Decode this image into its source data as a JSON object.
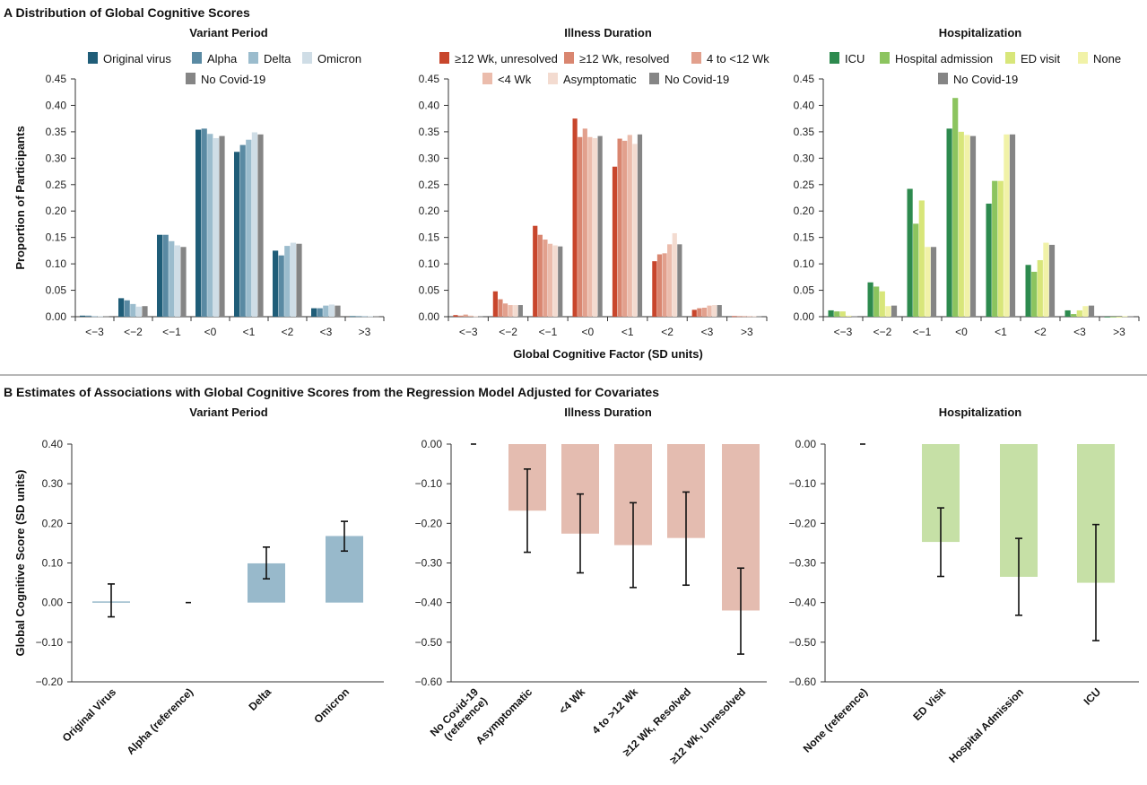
{
  "panel_a_title": "A  Distribution of Global Cognitive Scores",
  "panel_b_title": "B  Estimates of Associations with Global Cognitive Scores from the Regression Model Adjusted for Covariates",
  "panel_a_xlabel": "Global Cognitive Factor (SD units)",
  "colors": {
    "original": "#1f5d78",
    "alpha": "#5a8aa3",
    "delta": "#9bbccd",
    "omicron": "#cfdde6",
    "nocovid": "#858585",
    "d1": "#c8462c",
    "d2": "#d98670",
    "d3": "#e2a08d",
    "d4": "#ebbcac",
    "d5": "#f3dbd0",
    "h1": "#2d8a4e",
    "h2": "#8cc45f",
    "h3": "#d8e67a",
    "h4": "#f1f2a8",
    "b_variant": "#98b9cb",
    "b_duration": "#e4bcb0",
    "b_hosp": "#c6e0a6"
  },
  "chart_data": [
    {
      "type": "bar",
      "title": "Variant Period",
      "ylabel": "Proportion of Participants",
      "xlabel": "",
      "ylim": [
        0,
        0.45
      ],
      "yticks": [
        "0.00",
        "0.05",
        "0.10",
        "0.15",
        "0.20",
        "0.25",
        "0.30",
        "0.35",
        "0.40",
        "0.45"
      ],
      "categories": [
        "<−3",
        "<−2",
        "<−1",
        "<0",
        "<1",
        "<2",
        "<3",
        ">3"
      ],
      "legend": "top",
      "series": [
        {
          "name": "Original virus",
          "color": "original",
          "values": [
            0.002,
            0.035,
            0.155,
            0.354,
            0.312,
            0.125,
            0.016,
            0.001
          ]
        },
        {
          "name": "Alpha",
          "color": "alpha",
          "values": [
            0.002,
            0.031,
            0.155,
            0.356,
            0.325,
            0.116,
            0.016,
            0.001
          ]
        },
        {
          "name": "Delta",
          "color": "delta",
          "values": [
            0.001,
            0.024,
            0.143,
            0.346,
            0.335,
            0.134,
            0.021,
            0.001
          ]
        },
        {
          "name": "Omicron",
          "color": "omicron",
          "values": [
            0.001,
            0.019,
            0.135,
            0.338,
            0.349,
            0.14,
            0.023,
            0.001
          ]
        },
        {
          "name": "No Covid-19",
          "color": "nocovid",
          "values": [
            0.001,
            0.02,
            0.132,
            0.342,
            0.345,
            0.138,
            0.021,
            0.001
          ]
        }
      ]
    },
    {
      "type": "bar",
      "title": "Illness Duration",
      "ylabel": "",
      "xlabel": "",
      "ylim": [
        0,
        0.45
      ],
      "yticks": [
        "0.00",
        "0.05",
        "0.10",
        "0.15",
        "0.20",
        "0.25",
        "0.30",
        "0.35",
        "0.40",
        "0.45"
      ],
      "categories": [
        "<−3",
        "<−2",
        "<−1",
        "<0",
        "<1",
        "<2",
        "<3",
        ">3"
      ],
      "legend": "top",
      "series": [
        {
          "name": "≥12 Wk, unresolved",
          "color": "d1",
          "values": [
            0.003,
            0.048,
            0.172,
            0.375,
            0.284,
            0.105,
            0.013,
            0.001
          ]
        },
        {
          "name": "≥12 Wk, resolved",
          "color": "d2",
          "values": [
            0.002,
            0.033,
            0.155,
            0.34,
            0.337,
            0.118,
            0.016,
            0.001
          ]
        },
        {
          "name": "4 to <12 Wk",
          "color": "d3",
          "values": [
            0.004,
            0.025,
            0.146,
            0.356,
            0.333,
            0.12,
            0.017,
            0.001
          ]
        },
        {
          "name": "<4 Wk",
          "color": "d4",
          "values": [
            0.002,
            0.022,
            0.138,
            0.34,
            0.344,
            0.137,
            0.021,
            0.001
          ]
        },
        {
          "name": "Asymptomatic",
          "color": "d5",
          "values": [
            0.001,
            0.022,
            0.135,
            0.338,
            0.327,
            0.158,
            0.022,
            0.001
          ]
        },
        {
          "name": "No Covid-19",
          "color": "nocovid",
          "values": [
            0.001,
            0.022,
            0.133,
            0.342,
            0.345,
            0.137,
            0.022,
            0.001
          ]
        }
      ]
    },
    {
      "type": "bar",
      "title": "Hospitalization",
      "ylabel": "",
      "xlabel": "",
      "ylim": [
        0,
        0.45
      ],
      "yticks": [
        "0.00",
        "0.05",
        "0.10",
        "0.15",
        "0.20",
        "0.25",
        "0.30",
        "0.35",
        "0.40",
        "0.45"
      ],
      "categories": [
        "<−3",
        "<−2",
        "<−1",
        "<0",
        "<1",
        "<2",
        "<3",
        ">3"
      ],
      "legend": "top",
      "series": [
        {
          "name": "ICU",
          "color": "h1",
          "values": [
            0.012,
            0.065,
            0.242,
            0.356,
            0.214,
            0.098,
            0.012,
            0.0
          ]
        },
        {
          "name": "Hospital admission",
          "color": "h2",
          "values": [
            0.01,
            0.057,
            0.176,
            0.414,
            0.257,
            0.085,
            0.005,
            0.0
          ]
        },
        {
          "name": "ED visit",
          "color": "h3",
          "values": [
            0.01,
            0.048,
            0.22,
            0.35,
            0.257,
            0.107,
            0.012,
            0.0
          ]
        },
        {
          "name": "None",
          "color": "h4",
          "values": [
            0.002,
            0.02,
            0.132,
            0.344,
            0.345,
            0.14,
            0.02,
            0.001
          ]
        },
        {
          "name": "No Covid-19",
          "color": "nocovid",
          "values": [
            0.001,
            0.021,
            0.132,
            0.342,
            0.345,
            0.136,
            0.021,
            0.001
          ]
        }
      ]
    },
    {
      "type": "bar",
      "title": "Variant Period",
      "ylabel": "Global Cognitive Score (SD units)",
      "ylim": [
        -0.2,
        0.4
      ],
      "yticks": [
        "−0.20",
        "−0.10",
        "0.00",
        "0.10",
        "0.20",
        "0.30",
        "0.40"
      ],
      "color": "b_variant",
      "categories": [
        "Original Virus",
        "Alpha (reference)",
        "Delta",
        "Omicron"
      ],
      "values": [
        0.003,
        0.0,
        0.099,
        0.168
      ],
      "ci_low": [
        -0.036,
        null,
        0.06,
        0.13
      ],
      "ci_high": [
        0.047,
        null,
        0.14,
        0.205
      ]
    },
    {
      "type": "bar",
      "title": "Illness Duration",
      "ylabel": "",
      "ylim": [
        -0.6,
        0.0
      ],
      "yticks": [
        "−0.60",
        "−0.50",
        "−0.40",
        "−0.30",
        "−0.20",
        "−0.10",
        "0.00"
      ],
      "color": "b_duration",
      "categories": [
        "No Covid-19 (reference)",
        "Asymptomatic",
        "<4 Wk",
        "4 to >12 Wk",
        "≥12 Wk, Resolved",
        "≥12 Wk, Unresolved"
      ],
      "values": [
        0.0,
        -0.168,
        -0.226,
        -0.255,
        -0.237,
        -0.42
      ],
      "ci_low": [
        null,
        -0.273,
        -0.325,
        -0.362,
        -0.356,
        -0.53
      ],
      "ci_high": [
        null,
        -0.063,
        -0.126,
        -0.148,
        -0.121,
        -0.313
      ]
    },
    {
      "type": "bar",
      "title": "Hospitalization",
      "ylabel": "",
      "ylim": [
        -0.6,
        0.0
      ],
      "yticks": [
        "−0.60",
        "−0.50",
        "−0.40",
        "−0.30",
        "−0.20",
        "−0.10",
        "0.00"
      ],
      "color": "b_hosp",
      "categories": [
        "None (reference)",
        "ED Visit",
        "Hospital Admission",
        "ICU"
      ],
      "values": [
        0.0,
        -0.247,
        -0.335,
        -0.35
      ],
      "ci_low": [
        null,
        -0.334,
        -0.432,
        -0.496
      ],
      "ci_high": [
        null,
        -0.161,
        -0.238,
        -0.203
      ]
    }
  ]
}
